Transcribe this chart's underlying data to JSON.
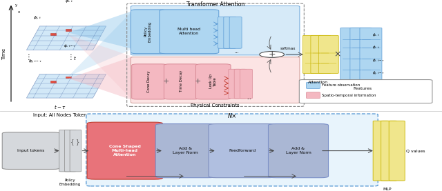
{
  "bg_color": "#ffffff",
  "top": {
    "title": "Transformer Attention",
    "physical_label": "Physical Constraints",
    "input_label": "Input: All Nodes Token",
    "time_label": "Time",
    "softmax_label": "softmax",
    "attention_label": "Attention",
    "features_label": "Features",
    "policy_emb_label": "Policy\nEmbedding",
    "multihead_label": "Multi head\nAttention",
    "cone_decay_label": "Cone Decay",
    "time_decay_label": "Time Decay",
    "lookup_label": "Look Up\nTable",
    "feature_obs_label": "Feature observation",
    "spatio_label": "Spatio-temporal information",
    "blue": "#aed6f1",
    "blue_edge": "#5b9bd5",
    "pink": "#f4b8c1",
    "pink_edge": "#d98b97",
    "yellow": "#f0e68c",
    "yellow_edge": "#c8b400",
    "gray_edge": "#888888"
  },
  "bot": {
    "nx_label": "N×",
    "input_label": "Input tokens",
    "policy_label": "Policy\nEmbedding",
    "cone_label": "Cone Shaped\nMulti-head\nAttention",
    "addnorm1_label": "Add &\nLayer Norm",
    "ff_label": "Feedforward",
    "addnorm2_label": "Add &\nLayer Norm",
    "mlp_label": "MLP",
    "q_label": "Q values",
    "main_fill": "#e8f4fc",
    "main_edge": "#5b9bd5",
    "input_fill": "#d5d8dc",
    "cone_fill": "#e8737a",
    "cone_edge": "#c0392b",
    "addnorm_fill": "#aab7d4",
    "addnorm_edge": "#7b8fc7",
    "ff_fill": "#b0bfe0",
    "ff_edge": "#8090c0",
    "yellow_fill": "#f0e68c",
    "yellow_edge": "#c8b400"
  }
}
